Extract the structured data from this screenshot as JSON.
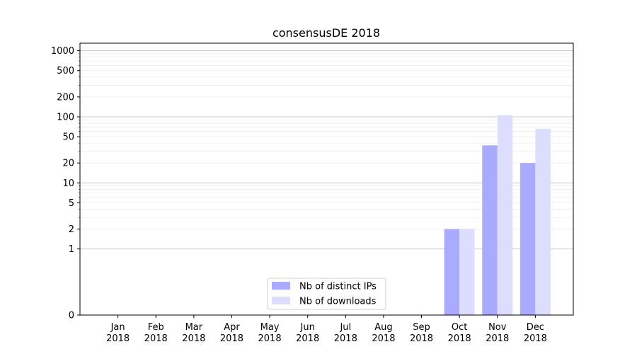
{
  "chart_data": {
    "type": "bar",
    "title": "consensusDE 2018",
    "xlabel": "",
    "ylabel": "",
    "yscale": "symlog",
    "ylim": [
      0,
      1300
    ],
    "yticks": [
      0,
      1,
      2,
      5,
      10,
      20,
      50,
      100,
      200,
      500,
      1000
    ],
    "ytick_labels": [
      "0",
      "1",
      "2",
      "5",
      "10",
      "20",
      "50",
      "100",
      "200",
      "500",
      "1000"
    ],
    "grid": true,
    "legend_position": "lower center",
    "categories": [
      [
        "Jan",
        "2018"
      ],
      [
        "Feb",
        "2018"
      ],
      [
        "Mar",
        "2018"
      ],
      [
        "Apr",
        "2018"
      ],
      [
        "May",
        "2018"
      ],
      [
        "Jun",
        "2018"
      ],
      [
        "Jul",
        "2018"
      ],
      [
        "Aug",
        "2018"
      ],
      [
        "Sep",
        "2018"
      ],
      [
        "Oct",
        "2018"
      ],
      [
        "Nov",
        "2018"
      ],
      [
        "Dec",
        "2018"
      ]
    ],
    "series": [
      {
        "name": "Nb of distinct IPs",
        "color": "#aaaaff",
        "values": [
          0,
          0,
          0,
          0,
          0,
          0,
          0,
          0,
          0,
          2,
          37,
          20
        ]
      },
      {
        "name": "Nb of downloads",
        "color": "#ddddff",
        "values": [
          0,
          0,
          0,
          0,
          0,
          0,
          0,
          0,
          0,
          2,
          106,
          66
        ]
      }
    ]
  }
}
